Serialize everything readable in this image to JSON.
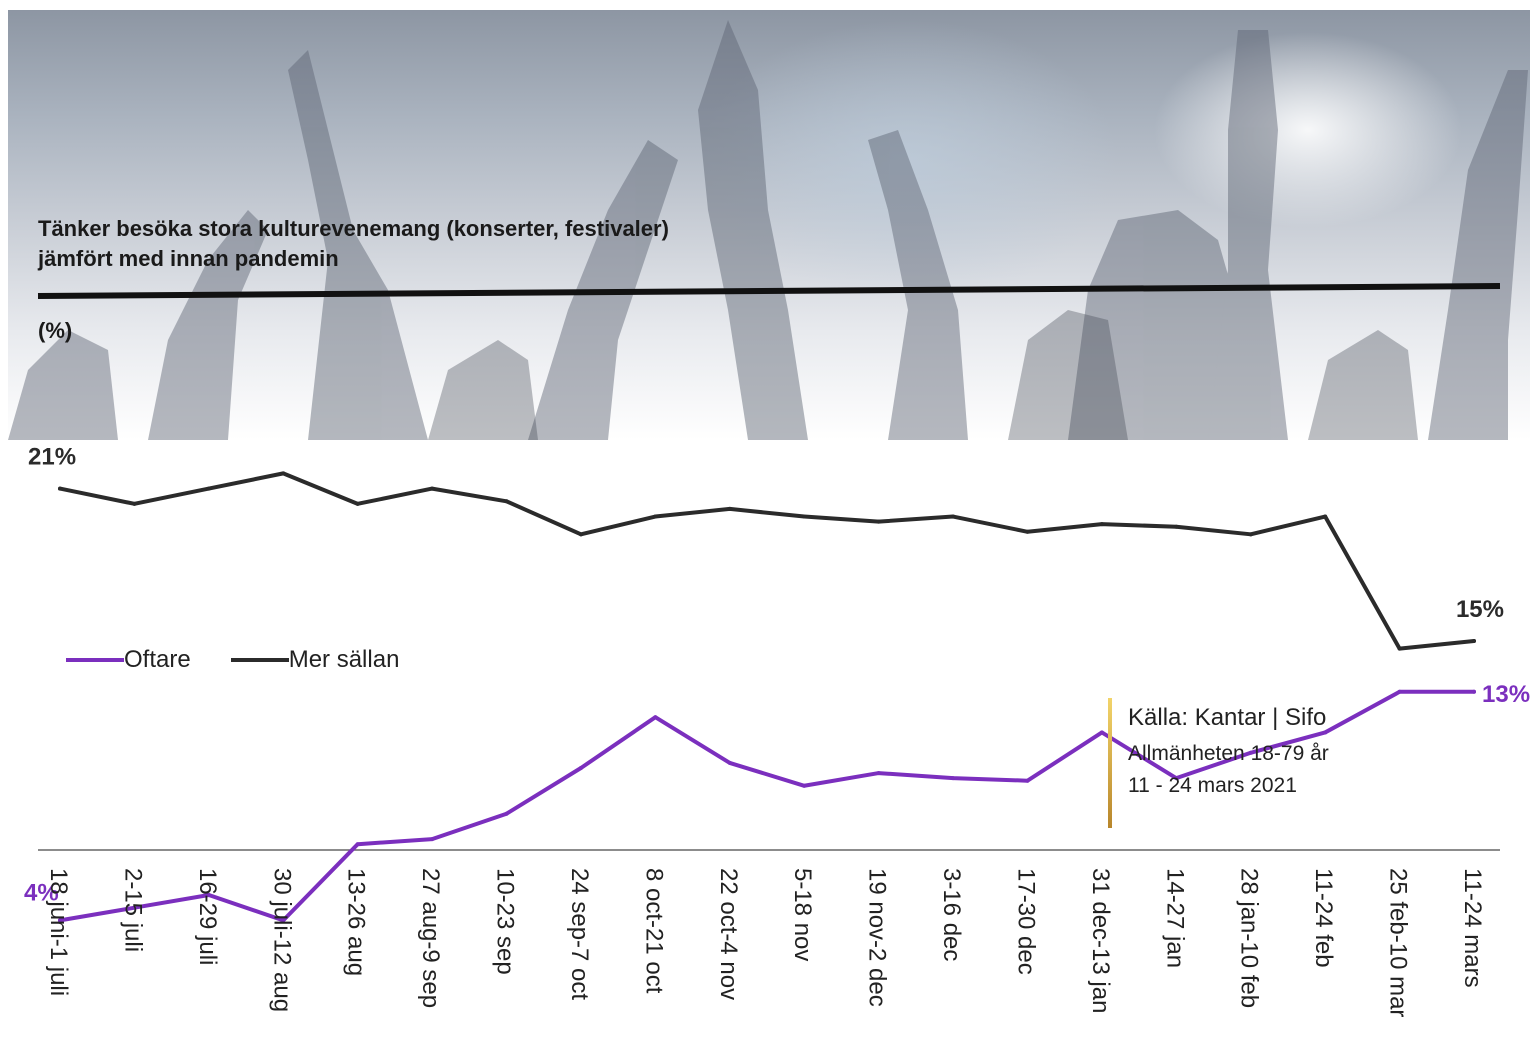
{
  "title_line1": "Tänker besöka stora kulturevenemang (konserter, festivaler)",
  "title_line2": "jämfört med innan pandemin",
  "unit_label": "(%)",
  "legend": {
    "oftare": "Oftare",
    "mer_sallan": "Mer sällan"
  },
  "source": {
    "line1": "Källa: Kantar | Sifo",
    "line2": "Allmänheten 18-79 år",
    "line3": "11 - 24 mars 2021"
  },
  "colors": {
    "oftare": "#7b2fbe",
    "mer_sallan": "#2b2b2b",
    "accent_gold": "#c9a23a"
  },
  "background_icon": "concert-crowd-image",
  "chart_data": {
    "type": "line",
    "title": "Tänker besöka stora kulturevenemang (konserter, festivaler) jämfört med innan pandemin",
    "ylabel": "(%)",
    "xlabel": "",
    "ylim": [
      0,
      30
    ],
    "grid": false,
    "legend_placement": "middle-left",
    "categories": [
      "18 juni-1 juli",
      "2-15 juli",
      "16-29 juli",
      "30 juli-12 aug",
      "13-26 aug",
      "27 aug-9 sep",
      "10-23 sep",
      "24 sep-7 oct",
      "8 oct-21 oct",
      "22 oct-4 nov",
      "5-18 nov",
      "19 nov-2 dec",
      "3-16 dec",
      "17-30 dec",
      "31 dec-13 jan",
      "14-27 jan",
      "28 jan-10 feb",
      "11-24 feb",
      "25 feb-10 mar",
      "11-24 mars"
    ],
    "series": [
      {
        "name": "Mer sällan",
        "color": "#2b2b2b",
        "values": [
          21.0,
          20.4,
          21.0,
          21.6,
          20.4,
          21.0,
          20.5,
          19.2,
          19.9,
          20.2,
          19.9,
          19.7,
          19.9,
          19.3,
          19.6,
          19.5,
          19.2,
          19.9,
          14.7,
          15.0
        ],
        "labels": {
          "0": "21%",
          "19": "15%"
        }
      },
      {
        "name": "Oftare",
        "color": "#7b2fbe",
        "values": [
          4.0,
          4.5,
          5.0,
          4.0,
          7.0,
          7.2,
          8.2,
          10.0,
          12.0,
          10.2,
          9.3,
          9.8,
          9.6,
          9.5,
          11.4,
          9.6,
          10.6,
          11.4,
          13.0,
          13.0
        ],
        "labels": {
          "0": "4%",
          "19": "13%"
        }
      }
    ]
  }
}
